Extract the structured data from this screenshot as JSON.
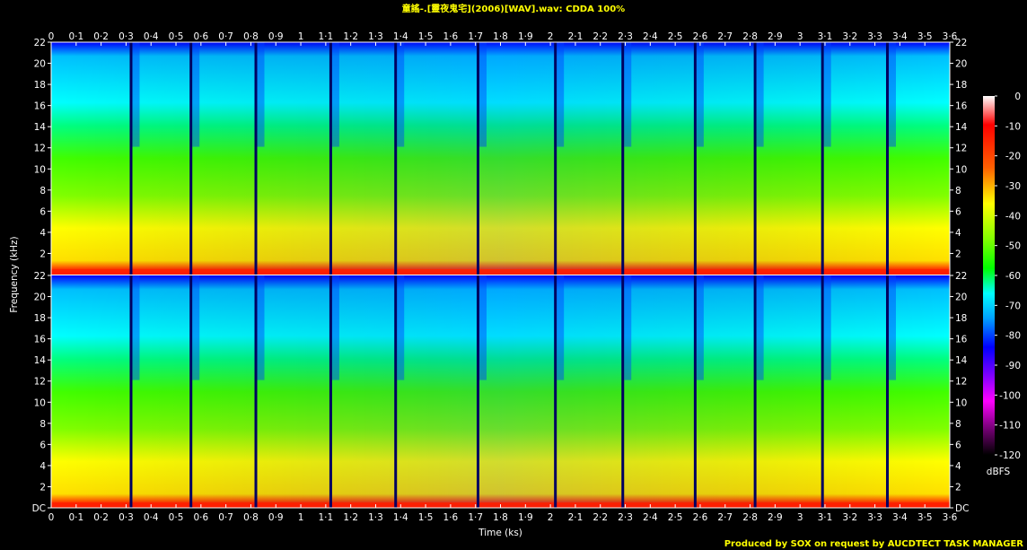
{
  "title": "童謠-.[靈夜鬼宅](2006)[WAV].wav: CDDA 100%",
  "footer": "Produced by SOX on request by AUCDTECT TASK MANAGER",
  "chart_data": {
    "type": "heatmap",
    "title": "童謠-.[靈夜鬼宅](2006)[WAV].wav: CDDA 100%",
    "xlabel": "Time (ks)",
    "ylabel": "Frequency (kHz)",
    "colorbar_label": "dBFS",
    "x_ticks": [
      "0",
      "0·1",
      "0·2",
      "0·3",
      "0·4",
      "0·5",
      "0·6",
      "0·7",
      "0·8",
      "0·9",
      "1",
      "1·1",
      "1·2",
      "1·3",
      "1·4",
      "1·5",
      "1·6",
      "1·7",
      "1·8",
      "1·9",
      "2",
      "2·1",
      "2·2",
      "2·3",
      "2·4",
      "2·5",
      "2·6",
      "2·7",
      "2·8",
      "2·9",
      "3",
      "3·1",
      "3·2",
      "3·3",
      "3·4",
      "3·5",
      "3·6"
    ],
    "y_ticks_top": [
      "22",
      "20",
      "18",
      "16",
      "14",
      "12",
      "10",
      "8",
      "6",
      "4",
      "2"
    ],
    "y_ticks_bottom": [
      "22",
      "20",
      "18",
      "16",
      "14",
      "12",
      "10",
      "8",
      "6",
      "4",
      "2",
      "DC"
    ],
    "colorbar_ticks": [
      "0",
      "-10",
      "-20",
      "-30",
      "-40",
      "-50",
      "-60",
      "-70",
      "-80",
      "-90",
      "-100",
      "-110",
      "-120"
    ],
    "colorbar_range_dbfs": [
      -120,
      0
    ],
    "x_range_ks": [
      0,
      3.6
    ],
    "y_range_khz": [
      0,
      22
    ],
    "channels": 2,
    "track_boundaries_ks": [
      0.32,
      0.56,
      0.82,
      1.12,
      1.38,
      1.71,
      2.02,
      2.29,
      2.58,
      2.82,
      3.09,
      3.35
    ],
    "colormap": [
      "#000000",
      "#400040",
      "#a000a0",
      "#d000ff",
      "#6000ff",
      "#0000ff",
      "#0060ff",
      "#00c0ff",
      "#00ffff",
      "#00ff80",
      "#00ff00",
      "#a0ff00",
      "#ffff00",
      "#ffc000",
      "#ff6000",
      "#ff0000",
      "#ff8080",
      "#ffffff"
    ]
  }
}
